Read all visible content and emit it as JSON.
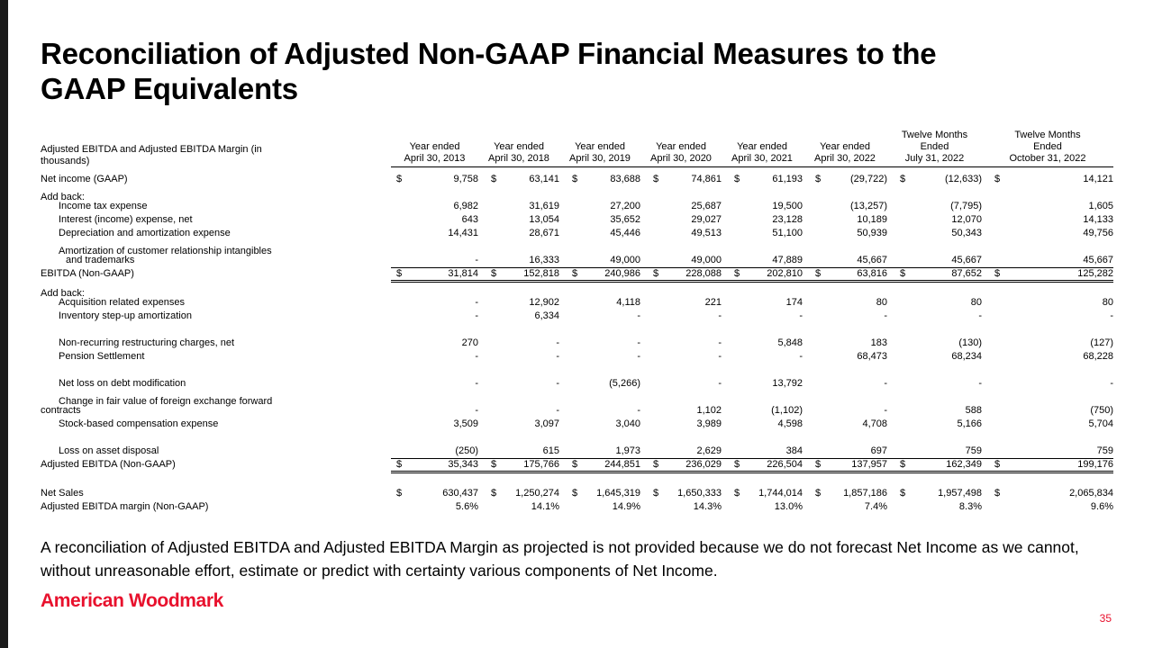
{
  "title": {
    "line1": "Reconciliation of Adjusted Non-GAAP Financial Measures to the",
    "line2": "GAAP Equivalents"
  },
  "table": {
    "caption_line1": "Adjusted EBITDA and Adjusted EBITDA Margin (in",
    "caption_line2": "thousands)",
    "col_headers": [
      [
        "Year ended",
        "April 30, 2013"
      ],
      [
        "Year ended",
        "April 30, 2018"
      ],
      [
        "Year ended",
        "April 30, 2019"
      ],
      [
        "Year ended",
        "April 30, 2020"
      ],
      [
        "Year ended",
        "April 30, 2021"
      ],
      [
        "Year ended",
        "April 30, 2022"
      ],
      [
        "Twelve Months",
        "Ended",
        "July 31, 2022"
      ],
      [
        "Twelve Months",
        "Ended",
        "October 31, 2022"
      ]
    ],
    "rows": [
      {
        "label": "Net income (GAAP)",
        "indent": 0,
        "type": "data",
        "dollar": true,
        "values": [
          "9,758",
          "63,141",
          "83,688",
          "74,861",
          "61,193",
          "(29,722)",
          "(12,633)",
          "14,121"
        ]
      },
      {
        "label": "Add back:",
        "indent": 0,
        "type": "label"
      },
      {
        "label": "Income tax expense",
        "indent": 1,
        "type": "data",
        "values": [
          "6,982",
          "31,619",
          "27,200",
          "25,687",
          "19,500",
          "(13,257)",
          "(7,795)",
          "1,605"
        ]
      },
      {
        "label": "Interest (income) expense, net",
        "indent": 1,
        "type": "data",
        "values": [
          "643",
          "13,054",
          "35,652",
          "29,027",
          "23,128",
          "10,189",
          "12,070",
          "14,133"
        ]
      },
      {
        "label": "Depreciation and amortization expense",
        "indent": 1,
        "type": "data",
        "values": [
          "14,431",
          "28,671",
          "45,446",
          "49,513",
          "51,100",
          "50,939",
          "50,343",
          "49,756"
        ]
      },
      {
        "label": "Amortization of customer relationship intangibles",
        "indent": 1,
        "type": "label"
      },
      {
        "label": "and trademarks",
        "indent": 2,
        "type": "data",
        "values": [
          "-",
          "16,333",
          "49,000",
          "49,000",
          "47,889",
          "45,667",
          "45,667",
          "45,667"
        ]
      },
      {
        "label": "EBITDA (Non-GAAP)",
        "indent": 0,
        "type": "subtotal",
        "dollar": true,
        "values": [
          "31,814",
          "152,818",
          "240,986",
          "228,088",
          "202,810",
          "63,816",
          "87,652",
          "125,282"
        ]
      },
      {
        "label": "Add back:",
        "indent": 0,
        "type": "label"
      },
      {
        "label": "Acquisition related expenses",
        "indent": 1,
        "type": "data",
        "values": [
          "-",
          "12,902",
          "4,118",
          "221",
          "174",
          "80",
          "80",
          "80"
        ]
      },
      {
        "label": "Inventory step-up amortization",
        "indent": 1,
        "type": "data",
        "values": [
          "-",
          "6,334",
          "-",
          "-",
          "-",
          "-",
          "-",
          "-"
        ]
      },
      {
        "type": "spacer"
      },
      {
        "label": "Non-recurring restructuring charges, net",
        "indent": 1,
        "type": "data",
        "values": [
          "270",
          "-",
          "-",
          "-",
          "5,848",
          "183",
          "(130)",
          "(127)"
        ]
      },
      {
        "label": "Pension Settlement",
        "indent": 1,
        "type": "data",
        "values": [
          "-",
          "-",
          "-",
          "-",
          "-",
          "68,473",
          "68,234",
          "68,228"
        ]
      },
      {
        "type": "spacer"
      },
      {
        "label": "Net loss on debt modification",
        "indent": 1,
        "type": "data",
        "values": [
          "-",
          "-",
          "(5,266)",
          "-",
          "13,792",
          "-",
          "-",
          "-"
        ]
      },
      {
        "label": "Change in fair value of foreign exchange forward",
        "indent": 1,
        "type": "label"
      },
      {
        "label": "contracts",
        "indent": 0,
        "type": "data",
        "values": [
          "-",
          "-",
          "-",
          "1,102",
          "(1,102)",
          "-",
          "588",
          "(750)"
        ]
      },
      {
        "label": "Stock-based compensation expense",
        "indent": 1,
        "type": "data",
        "values": [
          "3,509",
          "3,097",
          "3,040",
          "3,989",
          "4,598",
          "4,708",
          "5,166",
          "5,704"
        ]
      },
      {
        "type": "spacer"
      },
      {
        "label": "Loss on asset disposal",
        "indent": 1,
        "type": "data",
        "values": [
          "(250)",
          "615",
          "1,973",
          "2,629",
          "384",
          "697",
          "759",
          "759"
        ]
      },
      {
        "label": "Adjusted EBITDA (Non-GAAP)",
        "indent": 0,
        "type": "subtotal",
        "dollar": true,
        "values": [
          "35,343",
          "175,766",
          "244,851",
          "236,029",
          "226,504",
          "137,957",
          "162,349",
          "199,176"
        ]
      },
      {
        "type": "spacer"
      },
      {
        "label": "Net Sales",
        "indent": 0,
        "type": "data",
        "dollar": true,
        "values": [
          "630,437",
          "1,250,274",
          "1,645,319",
          "1,650,333",
          "1,744,014",
          "1,857,186",
          "1,957,498",
          "2,065,834"
        ]
      },
      {
        "label": "Adjusted EBITDA margin (Non-GAAP)",
        "indent": 0,
        "type": "data",
        "values": [
          "5.6%",
          "14.1%",
          "14.9%",
          "14.3%",
          "13.0%",
          "7.4%",
          "8.3%",
          "9.6%"
        ]
      }
    ]
  },
  "footnote": "A reconciliation of Adjusted EBITDA and Adjusted EBITDA Margin as projected is not provided because we do not forecast Net Income as we cannot, without unreasonable effort, estimate or predict with certainty various components of Net Income.",
  "logo_text": "American Woodmark",
  "page_number": "35",
  "colors": {
    "accent_red": "#E8112D",
    "edge_strip": "#1B1B1B",
    "text": "#000000"
  }
}
